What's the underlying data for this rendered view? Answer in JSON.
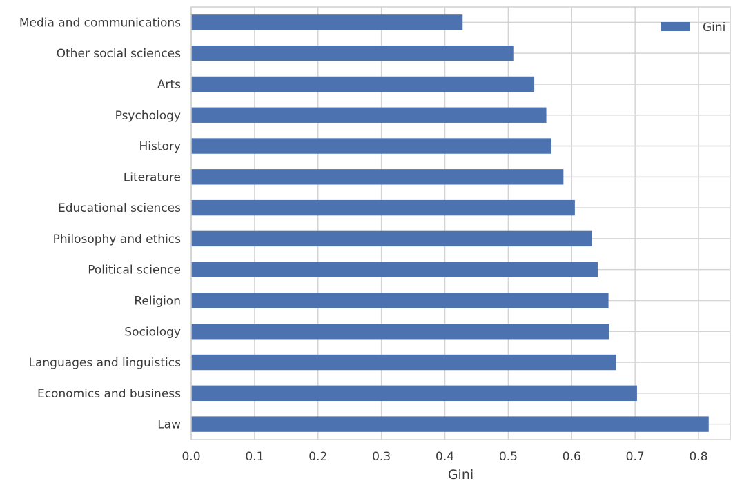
{
  "chart_data": {
    "type": "bar",
    "orientation": "horizontal",
    "categories": [
      "Media and communications",
      "Other social sciences",
      "Arts",
      "Psychology",
      "History",
      "Literature",
      "Educational sciences",
      "Philosophy and ethics",
      "Political science",
      "Religion",
      "Sociology",
      "Languages and linguistics",
      "Economics and business",
      "Law"
    ],
    "series": [
      {
        "name": "Gini",
        "color": "#4c72b0",
        "values": [
          0.428,
          0.508,
          0.541,
          0.56,
          0.568,
          0.587,
          0.605,
          0.632,
          0.641,
          0.658,
          0.659,
          0.67,
          0.703,
          0.816
        ]
      }
    ],
    "xlabel": "Gini",
    "ylabel": "",
    "title": "",
    "xlim": [
      0.0,
      0.85
    ],
    "xticks": [
      "0.0",
      "0.1",
      "0.2",
      "0.3",
      "0.4",
      "0.5",
      "0.6",
      "0.7",
      "0.8"
    ],
    "grid": true,
    "legend_position": "top-right"
  }
}
